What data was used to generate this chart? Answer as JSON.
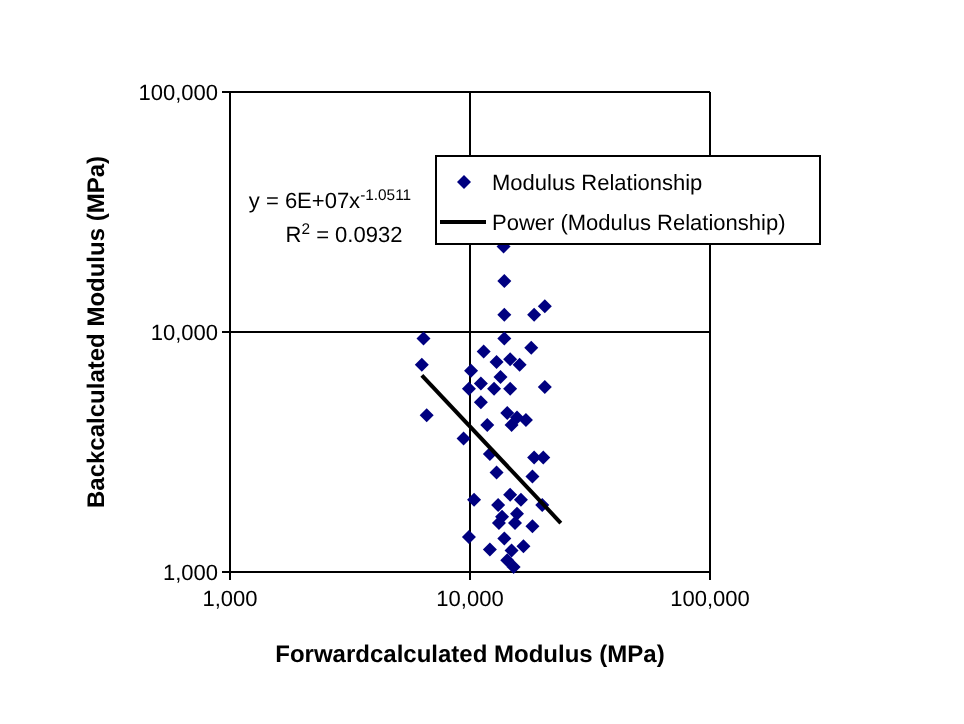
{
  "chart_data": {
    "type": "scatter",
    "xlabel": "Forwardcalculated Modulus (MPa)",
    "ylabel": "Backcalculated Modulus (MPa)",
    "log": "xy",
    "grid": true,
    "legend": "top right",
    "marker": "diamond",
    "xlim": [
      1000,
      100000
    ],
    "ylim": [
      1000,
      100000
    ],
    "xticks": [
      {
        "value": 1000,
        "label": "1,000"
      },
      {
        "value": 10000,
        "label": "10,000"
      },
      {
        "value": 100000,
        "label": "100,000"
      }
    ],
    "yticks": [
      {
        "value": 1000,
        "label": "1,000"
      },
      {
        "value": 10000,
        "label": "10,000"
      },
      {
        "value": 100000,
        "label": "100,000"
      }
    ],
    "annotations": [
      "y = 6E+07x$^{-1.0511}$",
      "R$^{2}$ = 0.0932"
    ],
    "series": [
      {
        "name": "Modulus Relationship",
        "color": "#000080",
        "x": [
          13800,
          13900,
          13900,
          20500,
          18500,
          6400,
          6300,
          6600,
          10100,
          11400,
          13900,
          18000,
          12900,
          14700,
          16100,
          13400,
          11100,
          9900,
          12600,
          14700,
          20500,
          11100,
          14300,
          15700,
          17100,
          9400,
          11800,
          14900,
          12100,
          12900,
          18500,
          20200,
          18200,
          10400,
          13100,
          14700,
          16300,
          20000,
          13600,
          15700,
          15400,
          18200,
          9900,
          13200,
          12100,
          13900,
          14900,
          14300,
          15200,
          16700
        ],
        "values": [
          22700,
          16300,
          11800,
          12800,
          11800,
          9400,
          7300,
          4500,
          6900,
          8300,
          9400,
          8600,
          7500,
          7700,
          7300,
          6500,
          6100,
          5800,
          5800,
          5800,
          5900,
          5100,
          4600,
          4400,
          4300,
          3600,
          4100,
          4100,
          3100,
          2600,
          3000,
          3000,
          2500,
          2000,
          1900,
          2100,
          2000,
          1900,
          1700,
          1750,
          1600,
          1550,
          1400,
          1600,
          1240,
          1380,
          1230,
          1120,
          1050,
          1280
        ]
      },
      {
        "name": "Power (Modulus Relationship)",
        "type": "line",
        "color": "#000000",
        "marker": "none",
        "line_style": "solid",
        "x": [
          6300,
          23900
        ],
        "values": [
          6600,
          1600
        ]
      }
    ]
  }
}
